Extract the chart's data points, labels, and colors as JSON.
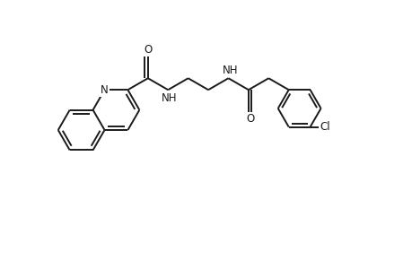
{
  "bg_color": "#ffffff",
  "line_color": "#1a1a1a",
  "line_width": 1.4,
  "fig_width": 4.6,
  "fig_height": 3.0,
  "dpi": 100,
  "xlim": [
    0,
    9.2
  ],
  "ylim": [
    0,
    6.0
  ]
}
